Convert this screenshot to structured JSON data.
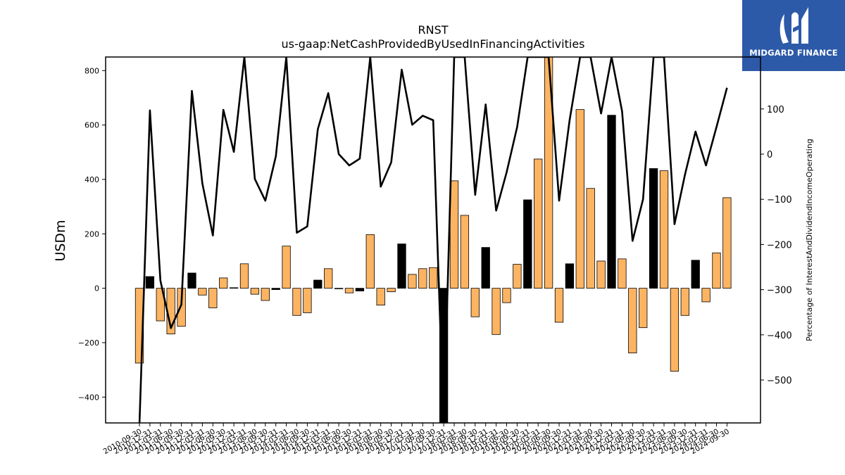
{
  "logo": {
    "text": "MIDGARD FINANCE"
  },
  "chart_data": {
    "type": "bar+line",
    "title": "RNST",
    "subtitle": "us-gaap:NetCashProvidedByUsedInFinancingActivities",
    "ylabel": "USDm",
    "y2label": "Percentage of InterestAndDividendIncomeOperating",
    "ylim": [
      -495,
      850
    ],
    "y2lim": [
      -595,
      215
    ],
    "yticks": [
      -400,
      -200,
      0,
      200,
      400,
      600,
      800
    ],
    "y2ticks": [
      -500,
      -400,
      -300,
      -200,
      -100,
      0,
      100
    ],
    "categories": [
      "2010-09-30",
      "2010-12-31",
      "2011-03-31",
      "2011-06-30",
      "2011-09-30",
      "2011-12-31",
      "2012-03-31",
      "2012-06-30",
      "2012-09-30",
      "2012-12-31",
      "2013-03-31",
      "2013-06-30",
      "2013-09-30",
      "2013-12-31",
      "2014-03-31",
      "2014-06-30",
      "2014-09-30",
      "2014-12-31",
      "2015-03-31",
      "2015-06-30",
      "2015-09-30",
      "2015-12-31",
      "2016-03-31",
      "2016-06-30",
      "2016-09-30",
      "2016-12-31",
      "2017-03-31",
      "2017-06-30",
      "2017-09-30",
      "2017-12-31",
      "2018-03-31",
      "2018-06-30",
      "2018-09-30",
      "2018-12-31",
      "2019-03-31",
      "2019-06-30",
      "2019-09-30",
      "2019-12-31",
      "2020-03-31",
      "2020-06-30",
      "2020-09-30",
      "2020-12-31",
      "2021-03-31",
      "2021-06-30",
      "2021-09-30",
      "2021-12-31",
      "2022-03-31",
      "2022-06-30",
      "2022-09-30",
      "2022-12-31",
      "2023-03-31",
      "2023-06-30",
      "2023-09-30",
      "2023-12-31",
      "2024-03-31",
      "2024-06-30",
      "2024-09-30"
    ],
    "tick_labels": [
      "2010-09-30",
      "2010-12-31",
      "2011-03-31",
      "2011-06-30",
      "2011-09-30",
      "2011-12-31",
      "2012-03-31",
      "2012-06-30",
      "2012-09-30",
      "2012-12-31",
      "2013-03-31",
      "2013-06-30",
      "2013-09-30",
      "2013-12-31",
      "2014-03-31",
      "2014-06-30",
      "2014-09-30",
      "2014-12-31",
      "2015-03-31",
      "2015-06-30",
      "2015-09-30",
      "2015-12-31",
      "2016-03-31",
      "2016-06-30",
      "2016-09-30",
      "2016-12-31",
      "2017-03-31",
      "2017-06-30",
      "2017-09-30",
      "2017-12-31",
      "2018-03-31",
      "2018-06-30",
      "2018-09-30",
      "2018-12-31",
      "2019-03-31",
      "2019-06-30",
      "2019-09-30",
      "2019-12-31",
      "2020-03-31",
      "2020-06-30",
      "2020-09-30",
      "2020-12-31",
      "2021-03-31",
      "2021-06-30",
      "2021-09-30",
      "2021-12-31",
      "2022-03-31",
      "2022-06-30",
      "2022-09-30",
      "2022-12-31",
      "2023-03-31",
      "2023-06-30",
      "2023-09-30",
      "2023-12-31",
      "2024-03-31",
      "2024-06-30",
      "2024-09-30"
    ],
    "bars": {
      "values": [
        -275,
        43,
        -120,
        -168,
        -140,
        56,
        -25,
        -72,
        38,
        2,
        90,
        -22,
        -45,
        -5,
        155,
        -100,
        -90,
        30,
        72,
        -2,
        -17,
        -10,
        197,
        -62,
        -13,
        163,
        51,
        72,
        76,
        -495,
        395,
        268,
        -105,
        150,
        -170,
        -53,
        88,
        325,
        475,
        850,
        -125,
        90,
        657,
        367,
        100,
        636,
        108,
        -238,
        -145,
        440,
        432,
        -305,
        -100,
        103,
        -50,
        130,
        333
      ],
      "colors": [
        "#fdb462",
        "#000000",
        "#fdb462",
        "#fdb462",
        "#fdb462",
        "#000000",
        "#fdb462",
        "#fdb462",
        "#fdb462",
        "#000000",
        "#fdb462",
        "#fdb462",
        "#fdb462",
        "#000000",
        "#fdb462",
        "#fdb462",
        "#fdb462",
        "#000000",
        "#fdb462",
        "#fdb462",
        "#fdb462",
        "#000000",
        "#fdb462",
        "#fdb462",
        "#fdb462",
        "#000000",
        "#fdb462",
        "#fdb462",
        "#fdb462",
        "#000000",
        "#fdb462",
        "#fdb462",
        "#fdb462",
        "#000000",
        "#fdb462",
        "#fdb462",
        "#fdb462",
        "#000000",
        "#fdb462",
        "#fdb462",
        "#fdb462",
        "#000000",
        "#fdb462",
        "#fdb462",
        "#fdb462",
        "#000000",
        "#fdb462",
        "#fdb462",
        "#fdb462",
        "#000000",
        "#fdb462",
        "#fdb462",
        "#fdb462",
        "#000000",
        "#fdb462",
        "#fdb462",
        "#fdb462"
      ]
    },
    "line": {
      "values": [
        -600,
        97,
        -280,
        -385,
        -333,
        140,
        -65,
        -180,
        98,
        5,
        215,
        -55,
        -103,
        -5,
        215,
        -174,
        -160,
        55,
        135,
        0,
        -25,
        -10,
        215,
        -72,
        -18,
        187,
        65,
        85,
        75,
        -600,
        215,
        215,
        -90,
        110,
        -125,
        -40,
        60,
        215,
        215,
        215,
        -103,
        75,
        215,
        215,
        90,
        215,
        95,
        -192,
        -100,
        215,
        215,
        -155,
        -45,
        50,
        -25,
        60,
        147
      ],
      "color": "#000000"
    },
    "grid": false,
    "legend": "none"
  }
}
